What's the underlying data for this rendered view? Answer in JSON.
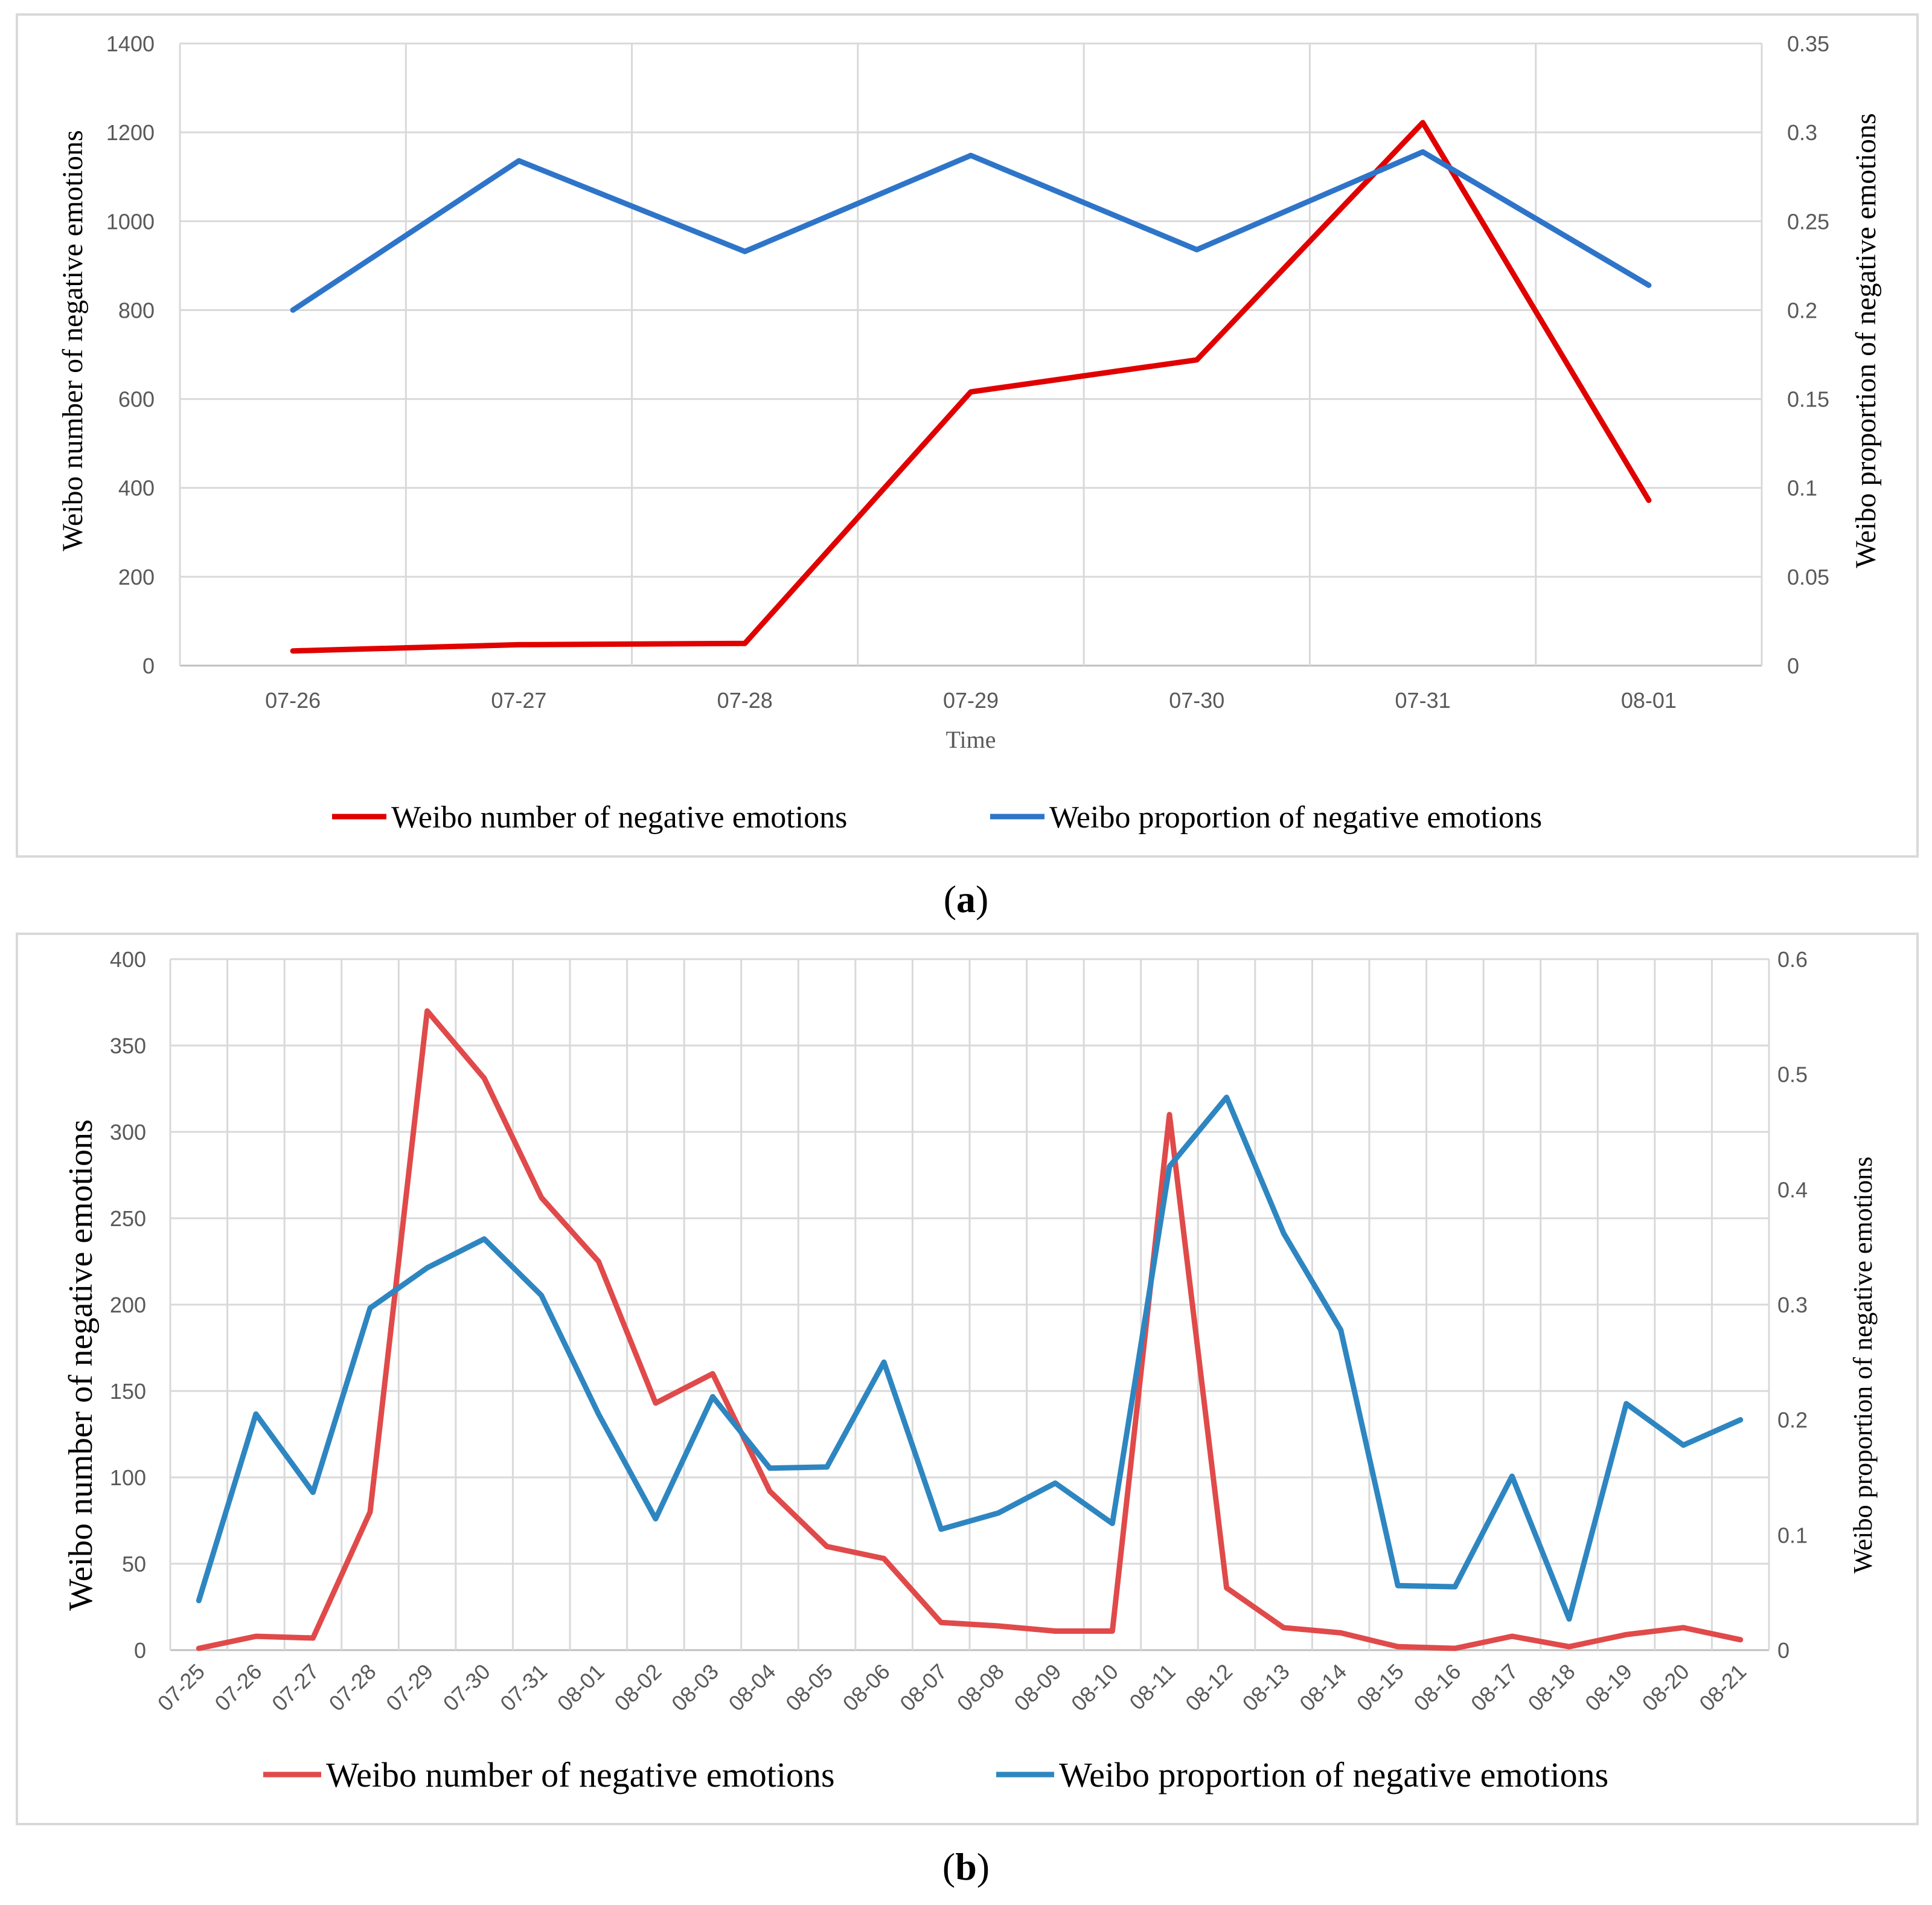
{
  "chart_data": [
    {
      "type": "line",
      "panel": "a",
      "caption": {
        "open": "(",
        "letter": "a",
        "close": ")"
      },
      "categories": [
        "07-26",
        "07-27",
        "07-28",
        "07-29",
        "07-30",
        "07-31",
        "08-01"
      ],
      "xlabel": "Time",
      "ylabel_left": "Weibo number of negative  emotions",
      "ylabel_right": "Weibo proportion  of negative  emotions",
      "ylim_left": [
        0,
        1400
      ],
      "ylim_right": [
        0,
        0.35
      ],
      "yticks_left": [
        "0",
        "200",
        "400",
        "600",
        "800",
        "1000",
        "1200",
        "1400"
      ],
      "yticks_right": [
        "0",
        "0.05",
        "0.1",
        "0.15",
        "0.2",
        "0.25",
        "0.3",
        "0.35"
      ],
      "grid": true,
      "legend_position": "bottom",
      "series": [
        {
          "name": "Weibo number of negative emotions",
          "axis": "left",
          "color": "#e00000",
          "values": [
            33,
            47,
            50,
            616,
            688,
            1222,
            372
          ]
        },
        {
          "name": "Weibo proportion of negative emotions",
          "axis": "right",
          "color": "#2e75c9",
          "values": [
            0.2,
            0.284,
            0.233,
            0.287,
            0.234,
            0.289,
            0.214
          ]
        }
      ]
    },
    {
      "type": "line",
      "panel": "b",
      "caption": {
        "open": "(",
        "letter": "b",
        "close": ")"
      },
      "categories": [
        "07-25",
        "07-26",
        "07-27",
        "07-28",
        "07-29",
        "07-30",
        "07-31",
        "08-01",
        "08-02",
        "08-03",
        "08-04",
        "08-05",
        "08-06",
        "08-07",
        "08-08",
        "08-09",
        "08-10",
        "08-11",
        "08-12",
        "08-13",
        "08-14",
        "08-15",
        "08-16",
        "08-17",
        "08-18",
        "08-19",
        "08-20",
        "08-21"
      ],
      "xlabel": "",
      "ylabel_left": "Weibo number of negative  emotions",
      "ylabel_right": "Weibo proportion of negative emotions",
      "ylim_left": [
        0,
        400
      ],
      "ylim_right": [
        0,
        0.6
      ],
      "yticks_left": [
        "0",
        "50",
        "100",
        "150",
        "200",
        "250",
        "300",
        "350",
        "400"
      ],
      "yticks_right": [
        "0",
        "0.1",
        "0.2",
        "0.3",
        "0.4",
        "0.5",
        "0.6"
      ],
      "grid": true,
      "legend_position": "bottom",
      "series": [
        {
          "name": "Weibo number of negative emotions",
          "axis": "left",
          "color": "#e04a4a",
          "values": [
            1,
            8,
            7,
            80,
            370,
            331,
            262,
            225,
            143,
            160,
            92,
            60,
            53,
            16,
            14,
            11,
            11,
            310,
            36,
            13,
            10,
            2,
            1,
            8,
            2,
            9,
            13,
            6
          ]
        },
        {
          "name": "Weibo proportion of negative emotions",
          "axis": "right",
          "color": "#2e86c1",
          "values": [
            0.043,
            0.205,
            0.137,
            0.297,
            0.332,
            0.357,
            0.308,
            0.205,
            0.114,
            0.22,
            0.158,
            0.159,
            0.25,
            0.105,
            0.119,
            0.145,
            0.11,
            0.42,
            0.48,
            0.362,
            0.278,
            0.056,
            0.055,
            0.151,
            0.027,
            0.214,
            0.178,
            0.2
          ]
        }
      ]
    }
  ]
}
